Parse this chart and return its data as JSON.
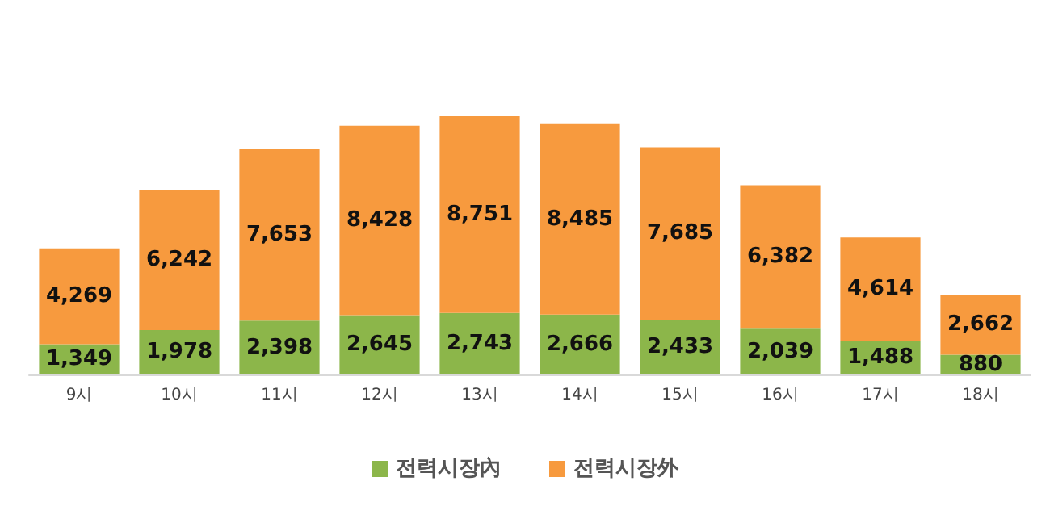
{
  "chart_data": {
    "type": "bar",
    "stacked": true,
    "legend": "bottom",
    "categories": [
      "9시",
      "10시",
      "11시",
      "12시",
      "13시",
      "14시",
      "15시",
      "16시",
      "17시",
      "18시"
    ],
    "series": [
      {
        "name": "전력시장內",
        "color": "#8cb64a",
        "values": [
          1349,
          1978,
          2398,
          2645,
          2743,
          2666,
          2433,
          2039,
          1488,
          880
        ],
        "value_labels": [
          "1,349",
          "1,978",
          "2,398",
          "2,645",
          "2,743",
          "2,666",
          "2,433",
          "2,039",
          "1,488",
          "880"
        ]
      },
      {
        "name": "전력시장外",
        "color": "#f79a3e",
        "values": [
          4269,
          6242,
          7653,
          8428,
          8751,
          8485,
          7685,
          6382,
          4614,
          2662
        ],
        "value_labels": [
          "4,269",
          "6,242",
          "7,653",
          "8,428",
          "8,751",
          "8,485",
          "7,685",
          "6,382",
          "4,614",
          "2,662"
        ]
      }
    ]
  }
}
